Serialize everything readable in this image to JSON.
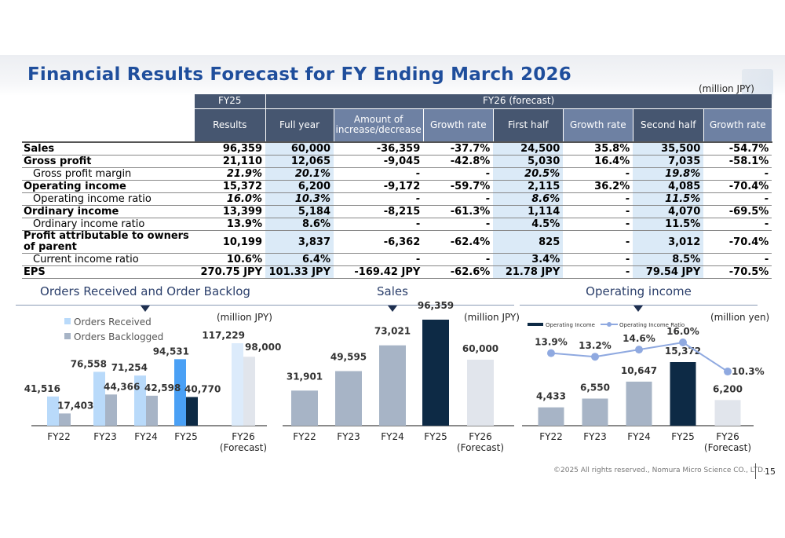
{
  "title": "Financial Results Forecast for FY Ending March 2026",
  "unit": "(million JPY)",
  "table": {
    "header_top": [
      "FY25",
      "FY26 (forecast)"
    ],
    "header": [
      "Results",
      "Full year",
      "Amount of increase/decrease",
      "Growth rate",
      "First half",
      "Growth rate",
      "Second half",
      "Growth rate"
    ],
    "rows": [
      {
        "label": "Sales",
        "values": [
          "96,359",
          "60,000",
          "-36,359",
          "-37.7%",
          "24,500",
          "35.8%",
          "35,500",
          "-54.7%"
        ]
      },
      {
        "label": "Gross profit",
        "values": [
          "21,110",
          "12,065",
          "-9,045",
          "-42.8%",
          "5,030",
          "16.4%",
          "7,035",
          "-58.1%"
        ]
      },
      {
        "label": "Gross profit margin",
        "values": [
          "21.9%",
          "20.1%",
          "-",
          "-",
          "20.5%",
          "-",
          "19.8%",
          "-"
        ]
      },
      {
        "label": "Operating income",
        "values": [
          "15,372",
          "6,200",
          "-9,172",
          "-59.7%",
          "2,115",
          "36.2%",
          "4,085",
          "-70.4%"
        ]
      },
      {
        "label": "Operating income ratio",
        "values": [
          "16.0%",
          "10.3%",
          "-",
          "-",
          "8.6%",
          "-",
          "11.5%",
          "-"
        ]
      },
      {
        "label": "Ordinary income",
        "values": [
          "13,399",
          "5,184",
          "-8,215",
          "-61.3%",
          "1,114",
          "-",
          "4,070",
          "-69.5%"
        ]
      },
      {
        "label": "Ordinary income ratio",
        "values": [
          "13.9%",
          "8.6%",
          "-",
          "-",
          "4.5%",
          "-",
          "11.5%",
          "-"
        ]
      },
      {
        "label": "Profit attributable to owners of parent",
        "values": [
          "10,199",
          "3,837",
          "-6,362",
          "-62.4%",
          "825",
          "-",
          "3,012",
          "-70.4%"
        ]
      },
      {
        "label": "Current income ratio",
        "values": [
          "10.6%",
          "6.4%",
          "-",
          "-",
          "3.4%",
          "-",
          "8.5%",
          "-"
        ]
      },
      {
        "label": "EPS",
        "values": [
          "270.75 JPY",
          "101.33 JPY",
          "-169.42 JPY",
          "-62.6%",
          "21.78 JPY",
          "-",
          "79.54 JPY",
          "-70.5%"
        ]
      }
    ]
  },
  "chart_data": [
    {
      "type": "bar",
      "title": "Orders Received and Order Backlog",
      "unit": "(million JPY)",
      "categories": [
        "FY22",
        "FY23",
        "FY24",
        "FY25",
        "FY26\n(Forecast)"
      ],
      "series": [
        {
          "name": "Orders Received",
          "values": [
            41516,
            76558,
            71254,
            94531,
            117229
          ],
          "labels": [
            "41,516",
            "76,558",
            "71,254",
            "94,531",
            "117,229"
          ],
          "colors": [
            "#b9dafa",
            "#b9dafa",
            "#b9dafa",
            "#4aa0f5",
            "#dcebfb"
          ]
        },
        {
          "name": "Orders Backlogged",
          "values": [
            17403,
            44366,
            42598,
            40770,
            98000
          ],
          "labels": [
            "17,403",
            "44,366",
            "42,598",
            "40,770",
            "98,000"
          ],
          "colors": [
            "#a7b4c6",
            "#a7b4c6",
            "#a7b4c6",
            "#0d2a45",
            "#e1e5ec"
          ]
        }
      ],
      "legend": "top-left"
    },
    {
      "type": "bar",
      "title": "Sales",
      "unit": "(million JPY)",
      "categories": [
        "FY22",
        "FY23",
        "FY24",
        "FY25",
        "FY26\n(Forecast)"
      ],
      "series": [
        {
          "values": [
            31901,
            49595,
            73021,
            96359,
            60000
          ],
          "labels": [
            "31,901",
            "49,595",
            "73,021",
            "96,359",
            "60,000"
          ],
          "colors": [
            "#a7b4c6",
            "#a7b4c6",
            "#a7b4c6",
            "#0d2a45",
            "#e1e5ec"
          ]
        }
      ]
    },
    {
      "type": "bar+line",
      "title": "Operating income",
      "unit": "(million yen)",
      "categories": [
        "FY22",
        "FY23",
        "FY24",
        "FY25",
        "FY26\n(Forecast)"
      ],
      "series": [
        {
          "name": "Operating Income",
          "values": [
            4433,
            6550,
            10647,
            15372,
            6200
          ],
          "labels": [
            "4,433",
            "6,550",
            "10,647",
            "15,372",
            "6,200"
          ],
          "colors": [
            "#a7b4c6",
            "#a7b4c6",
            "#a7b4c6",
            "#0d2a45",
            "#e1e5ec"
          ]
        },
        {
          "name": "Operating Income Ratio",
          "type": "line",
          "values": [
            13.9,
            13.2,
            14.6,
            16.0,
            10.3
          ],
          "labels": [
            "13.9%",
            "13.2%",
            "14.6%",
            "16.0%",
            "10.3%"
          ],
          "color": "#8fa9e0"
        }
      ],
      "legend": "top"
    }
  ],
  "footer": {
    "copyright": "©2025 All rights reserved., Nomura Micro Science CO., LTD.",
    "page": "15"
  }
}
